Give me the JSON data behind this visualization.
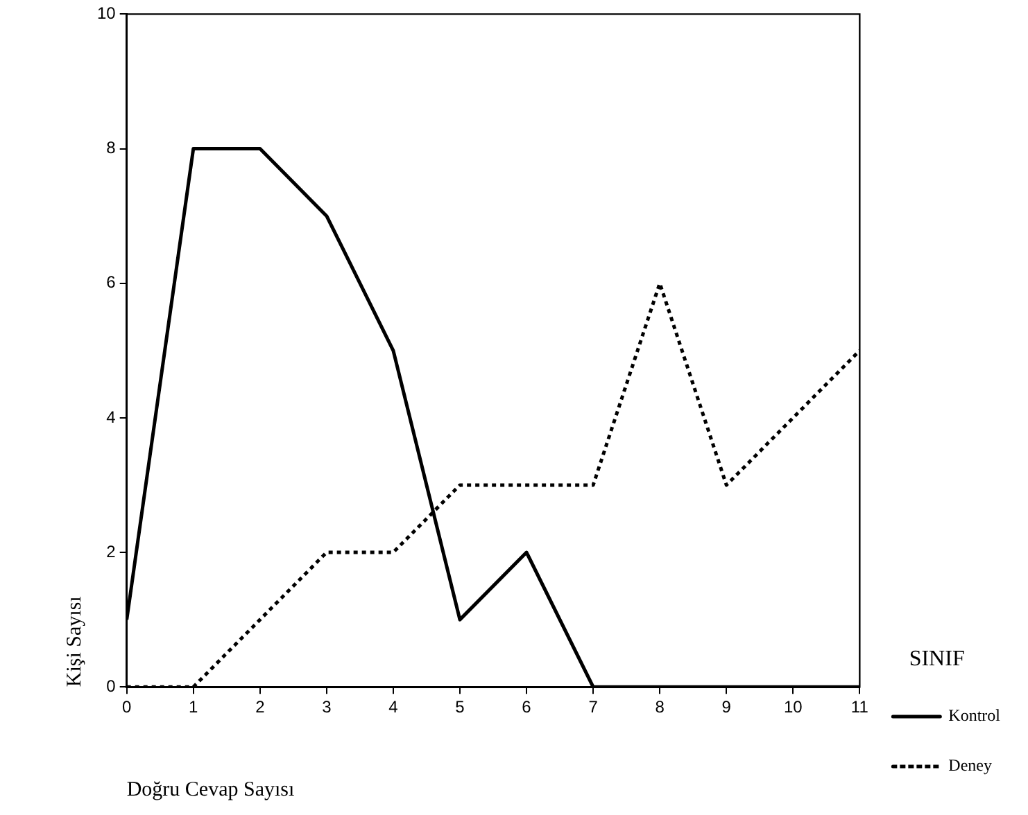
{
  "chart_data": {
    "type": "line",
    "xlabel": "Doğru Cevap Sayısı",
    "ylabel": "Kişi Sayısı",
    "legend_title": "SINIF",
    "legend": "right",
    "grid": false,
    "marker": "none",
    "x": [
      0,
      1,
      2,
      3,
      4,
      5,
      6,
      7,
      8,
      9,
      10,
      11
    ],
    "xlim": [
      0,
      11
    ],
    "xticks": [
      0,
      1,
      2,
      3,
      4,
      5,
      6,
      7,
      8,
      9,
      10,
      11
    ],
    "ylim": [
      0,
      10
    ],
    "yticks": [
      0,
      2,
      4,
      6,
      8,
      10
    ],
    "series": [
      {
        "name": "Kontrol",
        "color": "#000000",
        "line_style": "solid",
        "values": [
          1,
          8,
          8,
          7,
          5,
          1,
          2,
          0,
          0,
          0,
          0,
          0
        ]
      },
      {
        "name": "Deney",
        "color": "#000000",
        "line_style": "dotted",
        "values": [
          0,
          0,
          1,
          2,
          2,
          3,
          3,
          3,
          6,
          3,
          4,
          5
        ]
      }
    ]
  }
}
